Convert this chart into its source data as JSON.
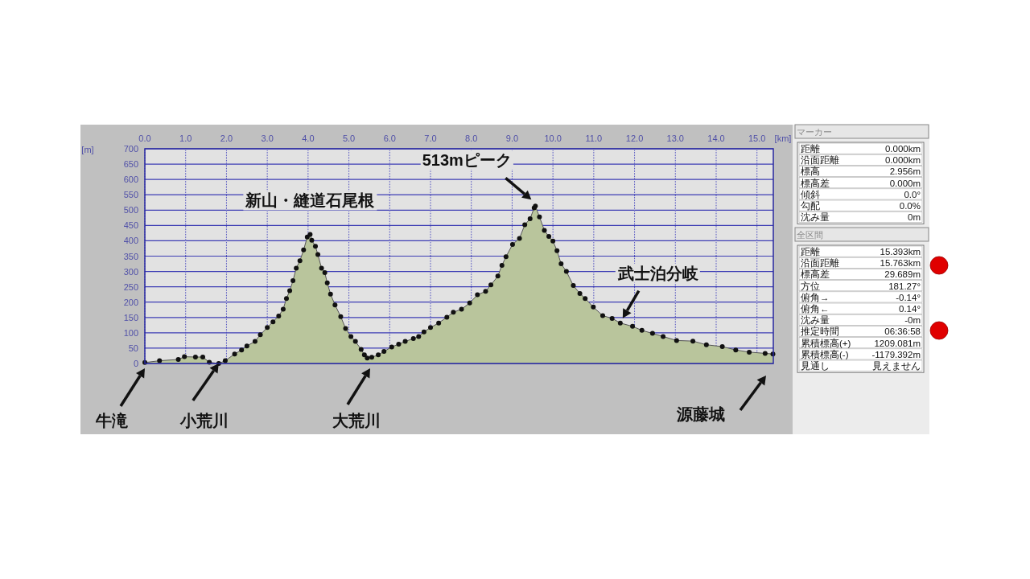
{
  "chart_data": [
    {
      "type": "area",
      "xlabel": "[km]",
      "ylabel": "[m]",
      "marker": "circle",
      "grid": true,
      "x": [
        0,
        0.36,
        0.82,
        0.97,
        1.24,
        1.42,
        1.58,
        1.81,
        1.97,
        2.2,
        2.37,
        2.5,
        2.7,
        2.83,
        3.0,
        3.14,
        3.28,
        3.39,
        3.47,
        3.55,
        3.63,
        3.71,
        3.8,
        3.89,
        3.98,
        4.05,
        4.09,
        4.18,
        4.24,
        4.33,
        4.41,
        4.47,
        4.55,
        4.66,
        4.8,
        4.92,
        5.05,
        5.16,
        5.3,
        5.38,
        5.45,
        5.56,
        5.72,
        5.86,
        6.05,
        6.22,
        6.38,
        6.58,
        6.71,
        6.84,
        7.0,
        7.2,
        7.4,
        7.56,
        7.76,
        7.96,
        8.15,
        8.35,
        8.48,
        8.65,
        8.75,
        8.85,
        9.01,
        9.18,
        9.31,
        9.44,
        9.54,
        9.57,
        9.67,
        9.79,
        9.9,
        10.0,
        10.1,
        10.2,
        10.33,
        10.5,
        10.66,
        10.79,
        10.99,
        11.22,
        11.45,
        11.65,
        11.95,
        12.18,
        12.44,
        12.7,
        13.03,
        13.43,
        13.76,
        14.15,
        14.48,
        14.81,
        15.2,
        15.39
      ],
      "series": [
        {
          "color": "#b9c59c",
          "values": [
            3,
            9,
            13,
            22,
            21,
            21,
            4,
            0,
            9,
            31,
            44,
            57,
            72,
            94,
            117,
            136,
            155,
            177,
            212,
            237,
            270,
            311,
            335,
            370,
            412,
            421,
            402,
            382,
            355,
            311,
            296,
            263,
            226,
            191,
            153,
            114,
            88,
            72,
            46,
            28,
            18,
            20,
            28,
            39,
            54,
            63,
            72,
            81,
            88,
            103,
            117,
            132,
            151,
            167,
            177,
            197,
            224,
            235,
            256,
            285,
            320,
            348,
            388,
            408,
            452,
            472,
            507,
            513,
            478,
            434,
            414,
            399,
            368,
            325,
            300,
            254,
            228,
            212,
            184,
            156,
            147,
            132,
            121,
            108,
            98,
            88,
            75,
            73,
            61,
            55,
            44,
            37,
            33,
            31
          ]
        }
      ],
      "xlim": [
        0,
        15.4
      ],
      "xticks": [
        {
          "value": 0,
          "label": "0.0"
        },
        {
          "value": 1,
          "label": "1.0"
        },
        {
          "value": 2,
          "label": "2.0"
        },
        {
          "value": 3,
          "label": "3.0"
        },
        {
          "value": 4,
          "label": "4.0"
        },
        {
          "value": 5,
          "label": "5.0"
        },
        {
          "value": 6,
          "label": "6.0"
        },
        {
          "value": 7,
          "label": "7.0"
        },
        {
          "value": 8,
          "label": "8.0"
        },
        {
          "value": 9,
          "label": "9.0"
        },
        {
          "value": 10,
          "label": "10.0"
        },
        {
          "value": 11,
          "label": "11.0"
        },
        {
          "value": 12,
          "label": "12.0"
        },
        {
          "value": 13,
          "label": "13.0"
        },
        {
          "value": 14,
          "label": "14.0"
        },
        {
          "value": 15,
          "label": "15.0"
        }
      ],
      "ylim": [
        0,
        700
      ],
      "yticks": [
        0,
        50,
        100,
        150,
        200,
        250,
        300,
        350,
        400,
        450,
        500,
        550,
        600,
        650,
        700
      ],
      "annotations": [
        {
          "text": "新山・縫道石尾根",
          "x": 4.05,
          "y": 421
        },
        {
          "text": "513mピーク",
          "x": 9.57,
          "y": 513
        },
        {
          "text": "武士泊分岐",
          "x": 11.65,
          "y": 132
        },
        "牛滝",
        {
          "text": "小荒川",
          "x": 1.81,
          "y": 0
        },
        "大荒川",
        "源藤城"
      ]
    },
    {
      "type": "other",
      "title": "マーカー",
      "annotations": [
        "距離",
        "0.000km",
        "沿面距離",
        "0.000km",
        "標高",
        "2.956m",
        "標高差",
        "0.000m",
        "傾斜",
        "0.0°",
        "勾配",
        "0.0%",
        "沈み量",
        "0m"
      ]
    },
    {
      "type": "other",
      "title": "全区間",
      "annotations": [
        "距離",
        "15.393km",
        "沿面距離",
        "15.763km",
        "標高差",
        "29.689m",
        "方位",
        "181.27°",
        "俯角→",
        "-0.14°",
        "俯角←",
        "0.14°",
        "沈み量",
        "-0m",
        "推定時間",
        "06:36:58",
        "累積標高(+)",
        "1209.081m",
        "累積標高(-)",
        "-1179.392m",
        "見通し",
        "見えません"
      ]
    }
  ]
}
